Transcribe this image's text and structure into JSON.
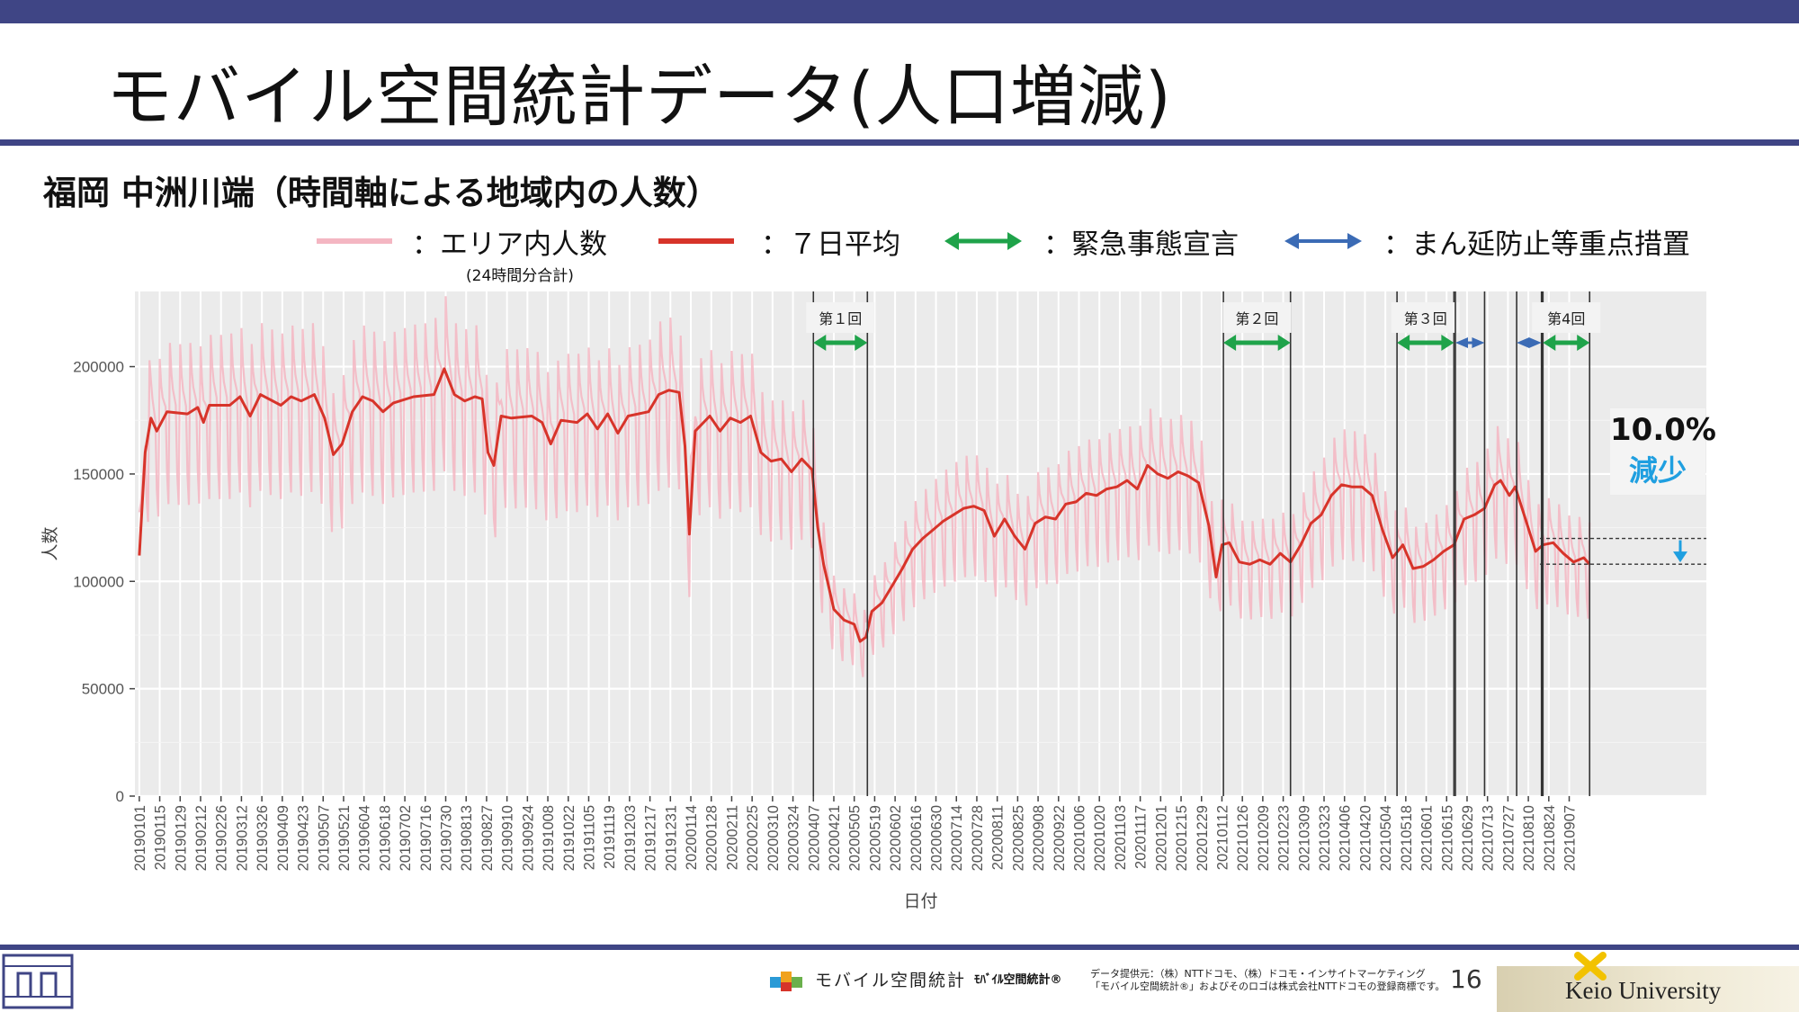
{
  "slide": {
    "title": "モバイル空間統計データ(人口増減)",
    "subtitle": "福岡 中洲川端（時間軸による地域内の人数）",
    "page_number": "16",
    "colors": {
      "header_bar": "#3f4585",
      "area_series": "#f4b6c2",
      "avg_series": "#d7342a",
      "emergency": "#1fa34a",
      "priority": "#3b6bb5",
      "panel_bg": "#ebebeb",
      "accent": "#1f9fe0"
    }
  },
  "legend": {
    "area_label": "：エリア内人数",
    "area_note": "(24時間分合計)",
    "avg_label": "：７日平均",
    "emergency_label": "：緊急事態宣言",
    "priority_label": "：まん延防止等重点措置"
  },
  "annotation": {
    "change_value": "10.0%",
    "change_label": "減少"
  },
  "footer": {
    "brand_text": "モバイル空間統計",
    "brand_text_2": "ﾓﾊﾞｲﾙ空間統計®",
    "source_line_1": "データ提供元：（株）NTTドコモ、（株）ドコモ・インサイトマーケティング",
    "source_line_2": "「モバイル空間統計®」およびそのロゴは株式会社NTTドコモの登録商標です。",
    "university": "Keio University"
  },
  "chart_data": {
    "type": "line",
    "xlabel": "日付",
    "ylabel": "人数",
    "ylim": [
      0,
      235000
    ],
    "y_ticks": [
      0,
      50000,
      100000,
      150000,
      200000
    ],
    "y_tick_labels": [
      "0",
      "50000",
      "100000",
      "150000",
      "200000"
    ],
    "x_range": [
      "2019-01-01",
      "2021-09-21"
    ],
    "x_tick_labels": [
      "20190101",
      "20190115",
      "20190129",
      "20190212",
      "20190226",
      "20190312",
      "20190326",
      "20190409",
      "20190423",
      "20190507",
      "20190521",
      "20190604",
      "20190618",
      "20190702",
      "20190716",
      "20190730",
      "20190813",
      "20190827",
      "20190910",
      "20190924",
      "20191008",
      "20191022",
      "20191105",
      "20191119",
      "20191203",
      "20191217",
      "20191231",
      "20200114",
      "20200128",
      "20200211",
      "20200225",
      "20200310",
      "20200324",
      "20200407",
      "20200421",
      "20200505",
      "20200519",
      "20200602",
      "20200616",
      "20200630",
      "20200714",
      "20200728",
      "20200811",
      "20200825",
      "20200908",
      "20200922",
      "20201006",
      "20201020",
      "20201103",
      "20201117",
      "20201201",
      "20201215",
      "20201229",
      "20210112",
      "20210126",
      "20210209",
      "20210223",
      "20210309",
      "20210323",
      "20210406",
      "20210420",
      "20210504",
      "20210518",
      "20210601",
      "20210615",
      "20210629",
      "20210713",
      "20210727",
      "20210810",
      "20210824",
      "20210907"
    ],
    "grid": true,
    "series": [
      {
        "name": "エリア内人数",
        "style": "weekly-oscillating",
        "color": "#f4b6c2",
        "weekday_high": 185000,
        "weekday_low": 150000
      },
      {
        "name": "７日平均",
        "color": "#d7342a",
        "points": [
          [
            "2019-01-01",
            112000
          ],
          [
            "2019-01-05",
            160000
          ],
          [
            "2019-01-09",
            176000
          ],
          [
            "2019-01-13",
            170000
          ],
          [
            "2019-01-20",
            179000
          ],
          [
            "2019-02-03",
            178000
          ],
          [
            "2019-02-10",
            181000
          ],
          [
            "2019-02-14",
            174000
          ],
          [
            "2019-02-18",
            182000
          ],
          [
            "2019-03-04",
            182000
          ],
          [
            "2019-03-11",
            186000
          ],
          [
            "2019-03-18",
            177000
          ],
          [
            "2019-03-25",
            187000
          ],
          [
            "2019-04-08",
            182000
          ],
          [
            "2019-04-15",
            186000
          ],
          [
            "2019-04-22",
            184000
          ],
          [
            "2019-05-01",
            187000
          ],
          [
            "2019-05-08",
            176000
          ],
          [
            "2019-05-14",
            159000
          ],
          [
            "2019-05-20",
            164000
          ],
          [
            "2019-05-27",
            179000
          ],
          [
            "2019-06-03",
            186000
          ],
          [
            "2019-06-10",
            184000
          ],
          [
            "2019-06-17",
            179000
          ],
          [
            "2019-06-24",
            183000
          ],
          [
            "2019-07-08",
            186000
          ],
          [
            "2019-07-22",
            187000
          ],
          [
            "2019-07-29",
            199000
          ],
          [
            "2019-08-05",
            187000
          ],
          [
            "2019-08-12",
            184000
          ],
          [
            "2019-08-19",
            186000
          ],
          [
            "2019-08-24",
            185000
          ],
          [
            "2019-08-28",
            160000
          ],
          [
            "2019-09-01",
            154000
          ],
          [
            "2019-09-06",
            177000
          ],
          [
            "2019-09-13",
            176000
          ],
          [
            "2019-09-27",
            177000
          ],
          [
            "2019-10-04",
            174000
          ],
          [
            "2019-10-10",
            164000
          ],
          [
            "2019-10-17",
            175000
          ],
          [
            "2019-10-28",
            174000
          ],
          [
            "2019-11-04",
            178000
          ],
          [
            "2019-11-11",
            171000
          ],
          [
            "2019-11-18",
            178000
          ],
          [
            "2019-11-25",
            169000
          ],
          [
            "2019-12-02",
            177000
          ],
          [
            "2019-12-16",
            179000
          ],
          [
            "2019-12-23",
            187000
          ],
          [
            "2019-12-30",
            189000
          ],
          [
            "2020-01-06",
            188000
          ],
          [
            "2020-01-10",
            163000
          ],
          [
            "2020-01-13",
            122000
          ],
          [
            "2020-01-17",
            170000
          ],
          [
            "2020-01-27",
            177000
          ],
          [
            "2020-02-03",
            170000
          ],
          [
            "2020-02-10",
            176000
          ],
          [
            "2020-02-17",
            174000
          ],
          [
            "2020-02-24",
            177000
          ],
          [
            "2020-03-02",
            160000
          ],
          [
            "2020-03-09",
            156000
          ],
          [
            "2020-03-16",
            157000
          ],
          [
            "2020-03-23",
            151000
          ],
          [
            "2020-03-30",
            157000
          ],
          [
            "2020-04-06",
            152000
          ],
          [
            "2020-04-10",
            125000
          ],
          [
            "2020-04-14",
            108000
          ],
          [
            "2020-04-21",
            87000
          ],
          [
            "2020-04-28",
            82000
          ],
          [
            "2020-05-05",
            80000
          ],
          [
            "2020-05-09",
            72000
          ],
          [
            "2020-05-13",
            74000
          ],
          [
            "2020-05-17",
            86000
          ],
          [
            "2020-05-24",
            90000
          ],
          [
            "2020-05-31",
            98000
          ],
          [
            "2020-06-07",
            106000
          ],
          [
            "2020-06-14",
            115000
          ],
          [
            "2020-06-21",
            120000
          ],
          [
            "2020-06-28",
            124000
          ],
          [
            "2020-07-05",
            128000
          ],
          [
            "2020-07-12",
            131000
          ],
          [
            "2020-07-19",
            134000
          ],
          [
            "2020-07-26",
            135000
          ],
          [
            "2020-08-02",
            133000
          ],
          [
            "2020-08-09",
            121000
          ],
          [
            "2020-08-16",
            129000
          ],
          [
            "2020-08-23",
            121000
          ],
          [
            "2020-08-30",
            115000
          ],
          [
            "2020-09-06",
            127000
          ],
          [
            "2020-09-13",
            130000
          ],
          [
            "2020-09-20",
            129000
          ],
          [
            "2020-09-27",
            136000
          ],
          [
            "2020-10-04",
            137000
          ],
          [
            "2020-10-11",
            141000
          ],
          [
            "2020-10-18",
            140000
          ],
          [
            "2020-10-25",
            143000
          ],
          [
            "2020-11-01",
            144000
          ],
          [
            "2020-11-08",
            147000
          ],
          [
            "2020-11-15",
            143000
          ],
          [
            "2020-11-22",
            154000
          ],
          [
            "2020-11-29",
            150000
          ],
          [
            "2020-12-06",
            148000
          ],
          [
            "2020-12-13",
            151000
          ],
          [
            "2020-12-20",
            149000
          ],
          [
            "2020-12-27",
            146000
          ],
          [
            "2021-01-03",
            126000
          ],
          [
            "2021-01-08",
            102000
          ],
          [
            "2021-01-12",
            117000
          ],
          [
            "2021-01-17",
            118000
          ],
          [
            "2021-01-24",
            109000
          ],
          [
            "2021-01-31",
            108000
          ],
          [
            "2021-02-07",
            110000
          ],
          [
            "2021-02-14",
            108000
          ],
          [
            "2021-02-21",
            113000
          ],
          [
            "2021-02-28",
            109000
          ],
          [
            "2021-03-07",
            117000
          ],
          [
            "2021-03-14",
            127000
          ],
          [
            "2021-03-21",
            131000
          ],
          [
            "2021-03-28",
            140000
          ],
          [
            "2021-04-04",
            145000
          ],
          [
            "2021-04-11",
            144000
          ],
          [
            "2021-04-18",
            144000
          ],
          [
            "2021-04-25",
            140000
          ],
          [
            "2021-05-02",
            124000
          ],
          [
            "2021-05-09",
            111000
          ],
          [
            "2021-05-16",
            117000
          ],
          [
            "2021-05-23",
            106000
          ],
          [
            "2021-05-30",
            107000
          ],
          [
            "2021-06-06",
            110000
          ],
          [
            "2021-06-13",
            114000
          ],
          [
            "2021-06-20",
            117000
          ],
          [
            "2021-06-27",
            129000
          ],
          [
            "2021-07-04",
            131000
          ],
          [
            "2021-07-11",
            134000
          ],
          [
            "2021-07-18",
            145000
          ],
          [
            "2021-07-22",
            147000
          ],
          [
            "2021-07-28",
            140000
          ],
          [
            "2021-08-01",
            144000
          ],
          [
            "2021-08-08",
            129000
          ],
          [
            "2021-08-15",
            114000
          ],
          [
            "2021-08-20",
            117000
          ],
          [
            "2021-08-27",
            118000
          ],
          [
            "2021-09-03",
            113000
          ],
          [
            "2021-09-10",
            109000
          ],
          [
            "2021-09-17",
            111000
          ],
          [
            "2021-09-21",
            108000
          ]
        ]
      }
    ],
    "periods": [
      {
        "label": "第１回",
        "kind": "emergency",
        "start": "2020-04-07",
        "end": "2020-05-14"
      },
      {
        "label": "第２回",
        "kind": "emergency",
        "start": "2021-01-13",
        "end": "2021-02-28"
      },
      {
        "label": "第３回",
        "kind": "emergency",
        "start": "2021-05-12",
        "end": "2021-06-20"
      },
      {
        "label": "",
        "kind": "priority",
        "start": "2021-06-21",
        "end": "2021-07-11"
      },
      {
        "label": "",
        "kind": "priority",
        "start": "2021-08-02",
        "end": "2021-08-19"
      },
      {
        "label": "第4回",
        "kind": "emergency",
        "start": "2021-08-20",
        "end": "2021-09-21"
      }
    ],
    "reference_levels": [
      120000,
      108000
    ]
  }
}
